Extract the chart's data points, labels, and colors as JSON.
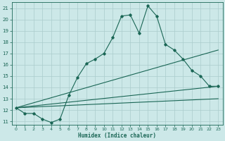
{
  "title": "",
  "xlabel": "Humidex (Indice chaleur)",
  "xlim": [
    -0.5,
    23.5
  ],
  "ylim": [
    10.7,
    21.5
  ],
  "yticks": [
    11,
    12,
    13,
    14,
    15,
    16,
    17,
    18,
    19,
    20,
    21
  ],
  "xticks": [
    0,
    1,
    2,
    3,
    4,
    5,
    6,
    7,
    8,
    9,
    10,
    11,
    12,
    13,
    14,
    15,
    16,
    17,
    18,
    19,
    20,
    21,
    22,
    23
  ],
  "bg_color": "#cce8e8",
  "grid_color": "#aacccc",
  "line_color": "#1a6655",
  "line1_x": [
    0,
    1,
    2,
    3,
    4,
    5,
    6,
    7,
    8,
    9,
    10,
    11,
    12,
    13,
    14,
    15,
    16,
    17,
    18,
    19,
    20,
    21,
    22,
    23
  ],
  "line1_y": [
    12.2,
    11.7,
    11.7,
    11.2,
    10.9,
    11.2,
    13.3,
    14.9,
    16.1,
    16.5,
    17.0,
    18.4,
    20.3,
    20.4,
    18.8,
    21.2,
    20.3,
    17.8,
    17.3,
    16.5,
    15.5,
    15.0,
    14.1,
    14.1
  ],
  "line2_x": [
    0,
    23
  ],
  "line2_y": [
    12.2,
    14.1
  ],
  "line3_x": [
    0,
    23
  ],
  "line3_y": [
    12.2,
    17.3
  ],
  "line4_x": [
    0,
    23
  ],
  "line4_y": [
    12.2,
    13.0
  ]
}
